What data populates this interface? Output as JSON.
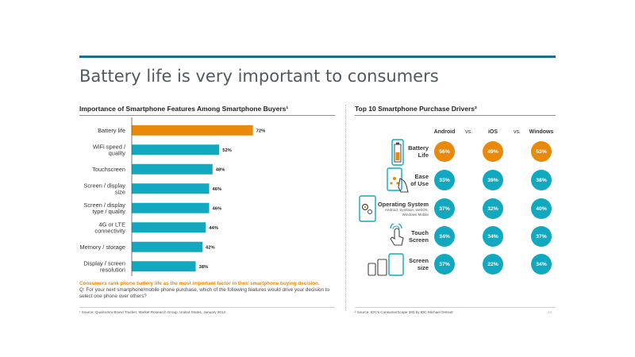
{
  "page": {
    "title": "Battery life is very important to consumers"
  },
  "left_chart_title": "Importance of Smartphone Features Among Smartphone Buyers¹",
  "right_chart_title": "Top 10 Smartphone Purchase Drivers²",
  "note": {
    "highlight": "Consumers rank phone battery life as the most important factor in their smartphone buying decision.",
    "question": "Q: For your next smartphone/mobile phone purchase, which of the following features would drive your decision to select one phone over others?"
  },
  "footnotes": {
    "left": "¹ Source: Qualcomm Brand Tracker, Market Research Group, United States, January 2014",
    "right": "² Source: IDC's ConsumerScape 360 by IDC Michael DeHart"
  },
  "page_number": "13",
  "colors": {
    "highlight": "#e8890c",
    "accent": "#11a8c0",
    "header_rule": "#1c6e8e"
  },
  "chart_data": [
    {
      "type": "bar",
      "orientation": "horizontal",
      "title": "Importance of Smartphone Features Among Smartphone Buyers¹",
      "categories": [
        [
          "Battery life"
        ],
        [
          "WiFi speed /",
          "quality"
        ],
        [
          "Touchscreen"
        ],
        [
          "Screen / display",
          "size"
        ],
        [
          "Screen / display",
          "type / quality"
        ],
        [
          "4G or LTE",
          "connectivity"
        ],
        [
          "Memory / storage"
        ],
        [
          "Display / screen",
          "resolution"
        ]
      ],
      "values": [
        72,
        52,
        48,
        46,
        46,
        44,
        42,
        38
      ],
      "value_labels": [
        "72%",
        "52%",
        "48%",
        "46%",
        "46%",
        "44%",
        "42%",
        "38%"
      ],
      "highlight_index": 0,
      "xlim": [
        0,
        100
      ]
    },
    {
      "type": "table",
      "title": "Top 10 Smartphone Purchase Drivers²",
      "columns": [
        "Android",
        "iOS",
        "Windows"
      ],
      "separators": [
        "vs.",
        "vs."
      ],
      "rows": [
        {
          "label": [
            "Battery",
            "Life"
          ],
          "sublabel": "",
          "icon": "battery-icon",
          "values": [
            56,
            49,
            53
          ],
          "value_labels": [
            "56%",
            "49%",
            "53%"
          ],
          "highlight": true
        },
        {
          "label": [
            "Ease",
            "of Use"
          ],
          "sublabel": "",
          "icon": "ease-of-use-icon",
          "values": [
            33,
            39,
            38
          ],
          "value_labels": [
            "33%",
            "39%",
            "38%"
          ],
          "highlight": false
        },
        {
          "label": [
            "Operating System"
          ],
          "sublabel": "Android, Symbian, webOS, Windows Mobile",
          "icon": "operating-system-icon",
          "values": [
            37,
            32,
            40
          ],
          "value_labels": [
            "37%",
            "32%",
            "40%"
          ],
          "highlight": false
        },
        {
          "label": [
            "Touch",
            "Screen"
          ],
          "sublabel": "",
          "icon": "touch-icon",
          "values": [
            34,
            34,
            37
          ],
          "value_labels": [
            "34%",
            "34%",
            "37%"
          ],
          "highlight": false
        },
        {
          "label": [
            "Screen",
            "size"
          ],
          "sublabel": "",
          "icon": "screen-size-icon",
          "values": [
            37,
            22,
            34
          ],
          "value_labels": [
            "37%",
            "22%",
            "34%"
          ],
          "highlight": false
        }
      ]
    }
  ]
}
